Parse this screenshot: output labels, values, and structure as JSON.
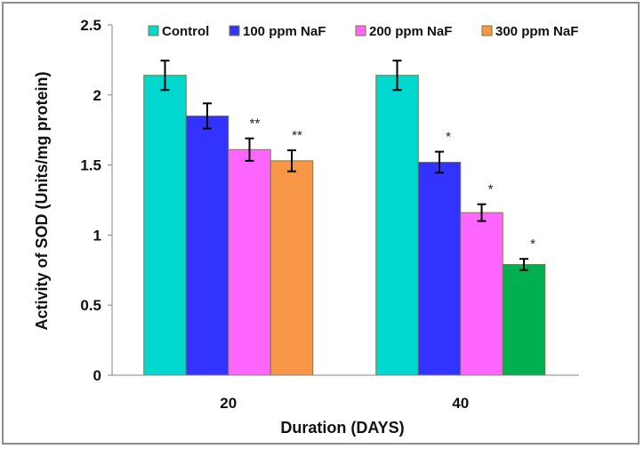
{
  "chart_data": {
    "type": "bar",
    "title": "",
    "xlabel": "Duration (DAYS)",
    "ylabel": "Activity of SOD (Units/mg protein)",
    "ylim": [
      0,
      2.5
    ],
    "yticks": [
      "0",
      "0.5",
      "1",
      "1.5",
      "2",
      "2.5"
    ],
    "ytick_values": [
      0,
      0.5,
      1,
      1.5,
      2,
      2.5
    ],
    "grid": false,
    "legend_position": "top",
    "categories": [
      "20",
      "40"
    ],
    "series": [
      {
        "name": "Control",
        "color": "#00D8D0",
        "values": [
          2.14,
          2.14
        ],
        "errors": [
          0.105,
          0.105
        ],
        "significance": [
          "",
          ""
        ]
      },
      {
        "name": "100 ppm NaF",
        "color": "#3333FF",
        "values": [
          1.85,
          1.52
        ],
        "errors": [
          0.09,
          0.075
        ],
        "significance": [
          "",
          "*"
        ]
      },
      {
        "name": "200 ppm NaF",
        "color": "#FF66FF",
        "values": [
          1.61,
          1.16
        ],
        "errors": [
          0.08,
          0.06
        ],
        "significance": [
          "**",
          "*"
        ]
      },
      {
        "name": "300 ppm NaF",
        "color": "#F79646",
        "values": [
          1.53,
          0.79
        ],
        "errors": [
          0.075,
          0.04
        ],
        "significance": [
          "**",
          "*"
        ],
        "bar_colors": [
          "#F79646",
          "#00B050"
        ]
      }
    ]
  }
}
